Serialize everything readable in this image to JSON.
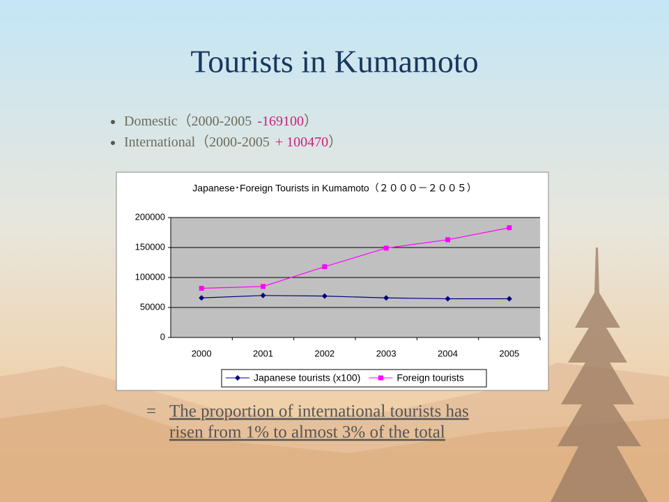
{
  "title": "Tourists in Kumamoto",
  "bullets": [
    {
      "text": "Domestic（2000-2005",
      "highlight": "-169100",
      "end": "）"
    },
    {
      "text": "International（2000-2005",
      "highlight": "+ 100470",
      "end": "）"
    }
  ],
  "conclusion": {
    "sign": "=",
    "lines": [
      "The proportion of international tourists has",
      "risen from 1% to almost 3% of the total"
    ]
  },
  "chart_data": {
    "type": "line",
    "title": "Japanese･Foreign Tourists in Kumamoto（２０００－２００５）",
    "categories": [
      "2000",
      "2001",
      "2002",
      "2003",
      "2004",
      "2005"
    ],
    "series": [
      {
        "name": "Japanese tourists (x100)",
        "color": "#000080",
        "marker": "diamond",
        "values": [
          66000,
          70000,
          69000,
          66000,
          64500,
          64500
        ]
      },
      {
        "name": "Foreign tourists",
        "color": "#ff00ff",
        "marker": "square",
        "values": [
          82000,
          85000,
          118000,
          149000,
          163000,
          183000
        ]
      }
    ],
    "ylim": [
      0,
      200000
    ],
    "yticks": [
      0,
      50000,
      100000,
      150000,
      200000
    ],
    "grid": true,
    "legend": "bottom"
  }
}
